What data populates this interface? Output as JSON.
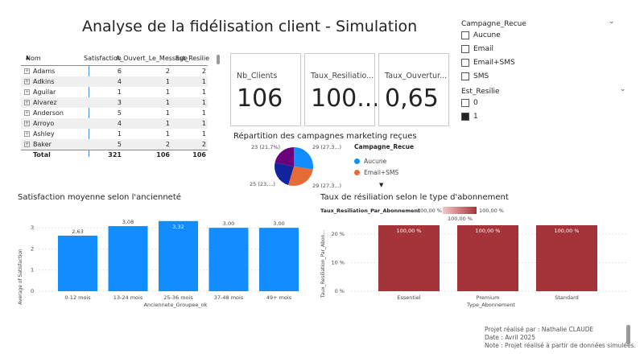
{
  "page": {
    "title": "Analyse de la fidélisation client - Simulation"
  },
  "table": {
    "columns": [
      "Nom",
      "Satisfaction",
      "A_Ouvert_Le_Message",
      "Est_Resilie"
    ],
    "rows": [
      {
        "name": "Adams",
        "satisfaction": "6",
        "ouvert": "2",
        "resilie": "2"
      },
      {
        "name": "Adkins",
        "satisfaction": "4",
        "ouvert": "1",
        "resilie": "1"
      },
      {
        "name": "Aguilar",
        "satisfaction": "1",
        "ouvert": "1",
        "resilie": "1"
      },
      {
        "name": "Alvarez",
        "satisfaction": "3",
        "ouvert": "1",
        "resilie": "1"
      },
      {
        "name": "Anderson",
        "satisfaction": "5",
        "ouvert": "1",
        "resilie": "1"
      },
      {
        "name": "Arroyo",
        "satisfaction": "4",
        "ouvert": "1",
        "resilie": "1"
      },
      {
        "name": "Ashley",
        "satisfaction": "1",
        "ouvert": "1",
        "resilie": "1"
      },
      {
        "name": "Baker",
        "satisfaction": "5",
        "ouvert": "2",
        "resilie": "2"
      }
    ],
    "total": {
      "label": "Total",
      "satisfaction": "321",
      "ouvert": "106",
      "resilie": "106"
    }
  },
  "cards": [
    {
      "label": "Nb_Clients",
      "value": "106"
    },
    {
      "label": "Taux_Resiliatio...",
      "value": "100..."
    },
    {
      "label": "Taux_Ouvertur...",
      "value": "0,65"
    }
  ],
  "slicers": {
    "campagne": {
      "title": "Campagne_Recue",
      "options": [
        {
          "label": "Aucune",
          "checked": false
        },
        {
          "label": "Email",
          "checked": false
        },
        {
          "label": "Email+SMS",
          "checked": false
        },
        {
          "label": "SMS",
          "checked": false
        }
      ]
    },
    "resilie": {
      "title": "Est_Resilie",
      "options": [
        {
          "label": "0",
          "checked": false
        },
        {
          "label": "1",
          "checked": true
        }
      ]
    }
  },
  "colors": {
    "bar_blue": "#118dff",
    "bar_red": "#a4343a",
    "pie_blue": "#118dff",
    "pie_orange": "#e66c37",
    "pie_navy": "#12239e",
    "pie_purple": "#6b007b"
  },
  "pie": {
    "title": "Répartition des campagnes marketing reçues",
    "legend_title": "Campagne_Recue",
    "legend": [
      {
        "label": "Aucune",
        "color": "#118dff"
      },
      {
        "label": "Email+SMS",
        "color": "#e66c37"
      }
    ],
    "labels": {
      "top_left": "23 (21,7%)",
      "top_right": "29 (27,3...)",
      "bottom_left": "25 (23,...)",
      "bottom_right": "29 (27,3...)"
    }
  },
  "bar_chart": {
    "title": "Satisfaction moyenne selon l'ancienneté",
    "ylabel": "Average of Satisfaction",
    "xlabel": "Anciennete_Groupee_ok",
    "yticks": [
      "0",
      "1",
      "2",
      "3"
    ]
  },
  "col_chart": {
    "title": "Taux de résiliation selon le type d'abonnement",
    "legend_title": "Taux_Resiliation_Par_Abonnement",
    "legend_min": "100,00 %",
    "legend_max": "100,00 %",
    "legend_mid": "100,00 %",
    "ylabel": "Taux_Resiliation_Par_Abon...",
    "xlabel": "Type_Abonnement",
    "yticks": [
      "0 %",
      "10 %",
      "20 %"
    ]
  },
  "chart_data": [
    {
      "type": "pie",
      "title": "Répartition des campagnes marketing reçues",
      "categories": [
        "Aucune",
        "Email+SMS",
        "Email",
        "SMS"
      ],
      "values": [
        29,
        29,
        25,
        23
      ]
    },
    {
      "type": "bar",
      "title": "Satisfaction moyenne selon l'ancienneté",
      "categories": [
        "0-12 mois",
        "13-24 mois",
        "25-36 mois",
        "37-48 mois",
        "49+ mois"
      ],
      "values": [
        2.63,
        3.08,
        3.32,
        3.0,
        3.0
      ],
      "labels": [
        "2,63",
        "3,08",
        "3,32",
        "3,00",
        "3,00"
      ],
      "xlabel": "Anciennete_Groupee_ok",
      "ylabel": "Average of Satisfaction",
      "ylim": [
        0,
        3.35
      ]
    },
    {
      "type": "bar",
      "title": "Taux de résiliation selon le type d'abonnement",
      "categories": [
        "Essentiel",
        "Premium",
        "Standard"
      ],
      "values": [
        100,
        100,
        100
      ],
      "labels": [
        "100,00 %",
        "100,00 %",
        "100,00 %"
      ],
      "xlabel": "Type_Abonnement",
      "ylabel": "Taux_Resiliation_Par_Abon...",
      "ylim": [
        0,
        25
      ]
    }
  ],
  "footer": {
    "line1": "Projet réalisé par : Nathalie CLAUDE",
    "line2": "Date : Avril 2025",
    "line3": "Note : Projet réalisé à partir de données simulées."
  }
}
